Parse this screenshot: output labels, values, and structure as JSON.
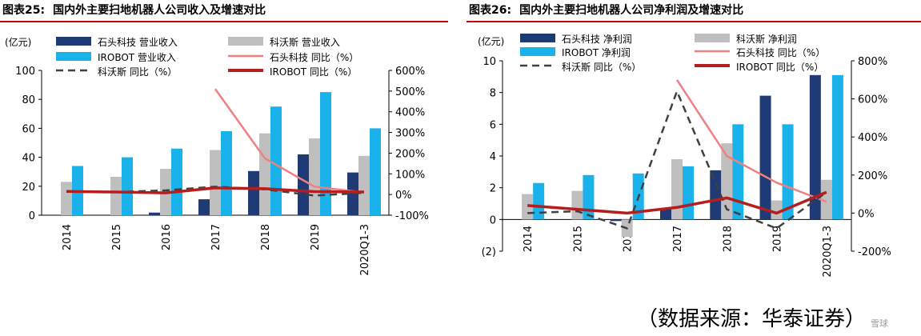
{
  "source": "（数据来源：华泰证券）",
  "watermark": "雪球",
  "colors": {
    "navy": "#1f3a75",
    "gray": "#bfbfbf",
    "cyan": "#19b2ea",
    "pink": "#f08080",
    "darkred": "#b51e1e",
    "dash": "#404040",
    "rule": "#c00000"
  },
  "chart_data": [
    {
      "fig_label": "图表25:",
      "title": "国内外主要扫地机器人公司收入及增速对比",
      "type": "bar",
      "unit_label": "(亿元)",
      "categories": [
        "2014",
        "2015",
        "2016",
        "2017",
        "2018",
        "2019",
        "2020Q1-3"
      ],
      "ylim": [
        0,
        100
      ],
      "yticks": [
        0,
        20,
        40,
        60,
        80,
        100
      ],
      "y2lim": [
        -100,
        600
      ],
      "y2ticks": [
        -100,
        0,
        100,
        200,
        300,
        400,
        500,
        600
      ],
      "y2_suffix": "%",
      "bars": [
        {
          "name": "石头科技 营业收入",
          "color": "navy",
          "values": [
            null,
            null,
            1.8,
            11,
            30.5,
            42,
            29.5
          ]
        },
        {
          "name": "科沃斯 营业收入",
          "color": "gray",
          "values": [
            23,
            26.5,
            32,
            45,
            56.5,
            53,
            41
          ]
        },
        {
          "name": "IROBOT 营业收入",
          "color": "cyan",
          "values": [
            34,
            40,
            46,
            58,
            75,
            85,
            60
          ]
        }
      ],
      "lines": [
        {
          "name": "石头科技 同比（%）",
          "color": "pink",
          "dash": false,
          "values": [
            null,
            null,
            null,
            510,
            175,
            38,
            10
          ]
        },
        {
          "name": "科沃斯 同比（%）",
          "color": "dash",
          "dash": true,
          "values": [
            15,
            12,
            20,
            38,
            25,
            -5,
            8
          ]
        },
        {
          "name": "IROBOT 同比（%）",
          "color": "darkred",
          "dash": false,
          "values": [
            15,
            12,
            8,
            32,
            28,
            14,
            12
          ]
        }
      ]
    },
    {
      "fig_label": "图表26:",
      "title": "国内外主要扫地机器人公司净利润及增速对比",
      "type": "bar",
      "unit_label": "(亿元)",
      "categories": [
        "2014",
        "2015",
        "2016",
        "2017",
        "2018",
        "2019",
        "2020Q1-3"
      ],
      "ylim": [
        -2,
        10
      ],
      "yticks": [
        -2,
        0,
        2,
        4,
        6,
        8,
        10
      ],
      "ytick_labels": [
        "(2)",
        "0",
        "2",
        "4",
        "6",
        "8",
        "10"
      ],
      "y2lim": [
        -200,
        800
      ],
      "y2ticks": [
        -200,
        0,
        200,
        400,
        600,
        800
      ],
      "y2_suffix": "%",
      "bars": [
        {
          "name": "石头科技 净利润",
          "color": "navy",
          "values": [
            null,
            null,
            -0.1,
            0.7,
            3.1,
            7.8,
            9.1
          ]
        },
        {
          "name": "科沃斯 净利润",
          "color": "gray",
          "values": [
            1.6,
            1.8,
            -1.1,
            3.8,
            4.8,
            1.2,
            2.5
          ]
        },
        {
          "name": "IROBOT 净利润",
          "color": "cyan",
          "values": [
            2.3,
            2.8,
            2.9,
            3.35,
            6.0,
            6.0,
            9.1
          ]
        }
      ],
      "lines": [
        {
          "name": "石头科技 同比（%）",
          "color": "pink",
          "dash": false,
          "values": [
            null,
            null,
            null,
            700,
            300,
            160,
            60
          ]
        },
        {
          "name": "科沃斯 同比（%）",
          "color": "dash",
          "dash": true,
          "values": [
            0,
            10,
            -80,
            640,
            20,
            -80,
            110
          ]
        },
        {
          "name": "IROBOT 同比（%）",
          "color": "darkred",
          "dash": false,
          "values": [
            40,
            20,
            0,
            30,
            80,
            0,
            110
          ]
        }
      ]
    }
  ]
}
